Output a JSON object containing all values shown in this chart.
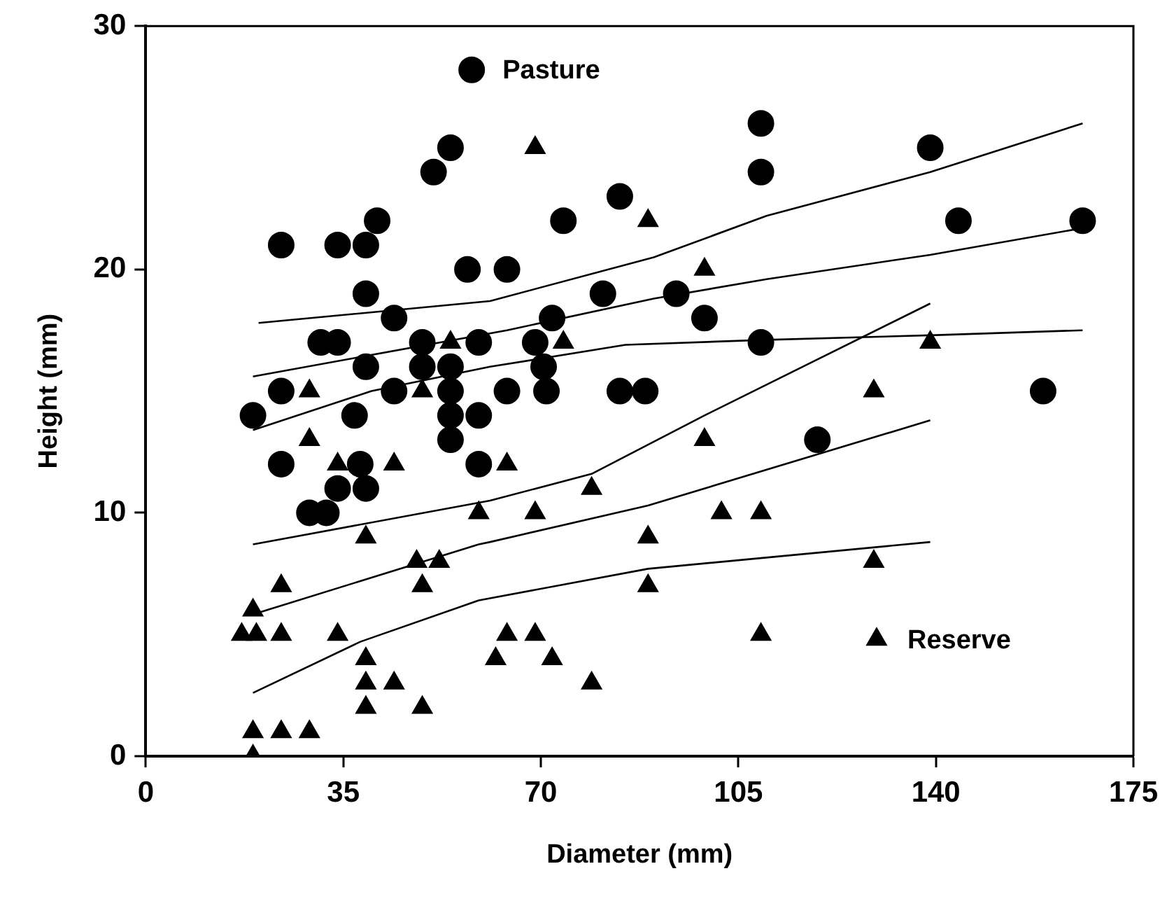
{
  "chart_data": {
    "type": "scatter",
    "xlabel": "Diameter (mm)",
    "ylabel": "Height (mm)",
    "xlim": [
      0,
      175
    ],
    "xticks": [
      0,
      35,
      70,
      105,
      140,
      175
    ],
    "ylim": [
      0,
      30
    ],
    "yticks": [
      0,
      10,
      20,
      30
    ],
    "grid": false,
    "legend": "top",
    "series": [
      {
        "name": "Pasture",
        "color": "#000000",
        "marker": "circle",
        "x": [
          19,
          24,
          24,
          24,
          29,
          32,
          31,
          34,
          34,
          34,
          37,
          38,
          39,
          39,
          39,
          39,
          41,
          44,
          44,
          49,
          49,
          51,
          54,
          54,
          54,
          54,
          54,
          57,
          59,
          59,
          59,
          64,
          64,
          69,
          70.5,
          71,
          72,
          74,
          84,
          84,
          88.5,
          81,
          94,
          99,
          109,
          109,
          109,
          119,
          139,
          144,
          166,
          159
        ],
        "values": [
          14,
          21,
          15,
          12,
          10,
          10,
          17,
          17,
          21,
          11,
          14,
          12,
          21,
          19,
          16,
          11,
          22,
          18,
          15,
          17,
          16,
          24,
          25,
          16,
          15,
          14,
          13,
          20,
          17,
          14,
          12,
          20,
          15,
          17,
          16,
          15,
          18,
          22,
          23,
          15,
          15,
          19,
          19,
          18,
          26,
          24,
          17,
          13,
          25,
          22,
          22,
          15
        ]
      },
      {
        "name": "Reserve",
        "color": "#000000",
        "marker": "triangle",
        "x": [
          19,
          19,
          24,
          29,
          17,
          19.6,
          19,
          24,
          24,
          29,
          29,
          34,
          34,
          44,
          39,
          39,
          39,
          39,
          44,
          49,
          49,
          48,
          52,
          49,
          54,
          59,
          62,
          64,
          64,
          69,
          69,
          69,
          72,
          74,
          79,
          79,
          89,
          89,
          89,
          99,
          99,
          102,
          109,
          109,
          129,
          129,
          139
        ],
        "values": [
          0,
          1,
          1,
          1,
          5,
          5,
          6,
          5,
          7,
          13,
          15,
          5,
          12,
          12,
          9,
          4,
          3,
          2,
          3,
          2,
          7,
          8,
          8,
          15,
          17,
          10,
          4,
          5,
          12,
          25,
          10,
          5,
          4,
          17,
          11,
          3,
          22,
          9,
          7,
          20,
          13,
          10,
          10,
          5,
          15,
          8,
          17
        ]
      },
      {
        "type": "line",
        "color": "#000000",
        "marker": "none",
        "x": [
          20,
          61,
          90,
          110,
          139,
          166
        ],
        "values": [
          17.8,
          18.7,
          20.5,
          22.2,
          24.0,
          26.0
        ]
      },
      {
        "type": "line",
        "color": "#000000",
        "marker": "none",
        "x": [
          19,
          64,
          90,
          110,
          139,
          166
        ],
        "values": [
          15.6,
          17.5,
          18.8,
          19.6,
          20.6,
          21.7
        ]
      },
      {
        "type": "line",
        "color": "#000000",
        "marker": "none",
        "x": [
          19,
          40,
          61,
          85,
          109,
          140,
          166
        ],
        "values": [
          13.4,
          15,
          16,
          16.9,
          17.1,
          17.3,
          17.5
        ]
      },
      {
        "type": "line",
        "color": "#000000",
        "marker": "none",
        "x": [
          19,
          61,
          79,
          99,
          139
        ],
        "values": [
          8.7,
          10.5,
          11.6,
          14,
          18.6
        ]
      },
      {
        "type": "line",
        "color": "#000000",
        "marker": "none",
        "x": [
          20,
          59,
          61,
          89,
          139
        ],
        "values": [
          5.9,
          8.7,
          8.8,
          10.3,
          13.8
        ]
      },
      {
        "type": "line",
        "color": "#000000",
        "marker": "none",
        "x": [
          19,
          38,
          59,
          89,
          139
        ],
        "values": [
          2.6,
          4.7,
          6.4,
          7.7,
          8.8
        ]
      }
    ]
  }
}
